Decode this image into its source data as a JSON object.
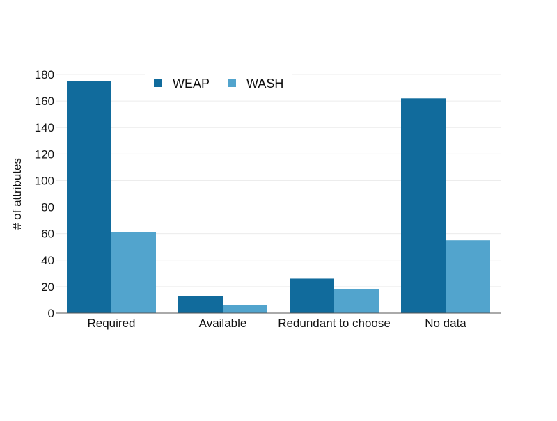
{
  "chart_data": {
    "type": "bar",
    "categories": [
      "Required",
      "Available",
      "Redundant to choose",
      "No data"
    ],
    "series": [
      {
        "name": "WEAP",
        "values": [
          175,
          13,
          26,
          162
        ],
        "color": "#116b9c"
      },
      {
        "name": "WASH",
        "values": [
          61,
          6,
          18,
          55
        ],
        "color": "#52a4cd"
      }
    ],
    "title": "",
    "xlabel": "",
    "ylabel": "# of attributes",
    "ylim": [
      0,
      180
    ],
    "yticks": [
      0,
      20,
      40,
      60,
      80,
      100,
      120,
      140,
      160,
      180
    ],
    "grid": true,
    "legend_position": "top-center"
  }
}
